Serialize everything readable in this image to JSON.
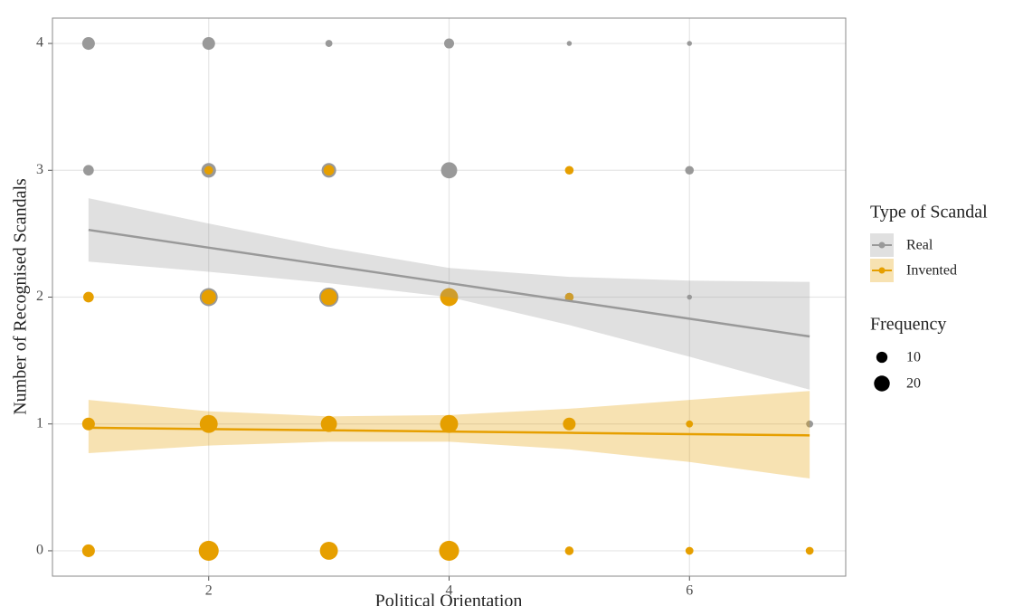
{
  "chart_data": {
    "type": "scatter",
    "x_label": "Political Orientation",
    "y_label": "Number of Recognised Scandals",
    "xlim": [
      0.7,
      7.3
    ],
    "ylim": [
      -0.2,
      4.2
    ],
    "xticks": [
      2,
      4,
      6
    ],
    "yticks": [
      0,
      1,
      2,
      3,
      4
    ],
    "grid": true,
    "legend_position": "right",
    "color_legend_title": "Type of Scandal",
    "size_legend_title": "Frequency",
    "size_legend": [
      10,
      20
    ],
    "series": [
      {
        "name": "Real",
        "color": "#999999",
        "x": [
          1,
          2,
          3,
          4,
          5,
          6,
          1,
          2,
          3,
          4,
          6,
          2,
          3,
          4,
          5,
          6,
          7
        ],
        "y": [
          4,
          4,
          4,
          4,
          4,
          4,
          3,
          3,
          3,
          3,
          3,
          2,
          2,
          2,
          2,
          2,
          1
        ],
        "size": [
          13,
          13,
          4,
          8,
          2,
          2,
          9,
          17,
          17,
          21,
          6,
          26,
          30,
          20,
          6,
          2,
          4
        ],
        "fit": {
          "x": [
            1,
            2,
            3,
            4,
            5,
            6,
            7
          ],
          "y": [
            2.53,
            2.39,
            2.25,
            2.11,
            1.97,
            1.83,
            1.69
          ],
          "lower": [
            2.28,
            2.2,
            2.11,
            2.0,
            1.78,
            1.53,
            1.27
          ],
          "upper": [
            2.78,
            2.58,
            2.39,
            2.23,
            2.16,
            2.13,
            2.12
          ]
        }
      },
      {
        "name": "Invented",
        "color": "#E69F00",
        "x": [
          2,
          3,
          5,
          1,
          2,
          3,
          4,
          5,
          1,
          2,
          3,
          4,
          5,
          6,
          1,
          2,
          3,
          4,
          5,
          6,
          7
        ],
        "y": [
          3,
          3,
          3,
          2,
          2,
          2,
          2,
          2,
          1,
          1,
          1,
          1,
          1,
          1,
          0,
          0,
          0,
          0,
          0,
          0,
          0
        ],
        "size": [
          6,
          9,
          6,
          9,
          17,
          21,
          26,
          6,
          13,
          26,
          21,
          26,
          13,
          4,
          13,
          32,
          26,
          32,
          6,
          5,
          5
        ],
        "fit": {
          "x": [
            1,
            2,
            3,
            4,
            5,
            6,
            7
          ],
          "y": [
            0.97,
            0.96,
            0.95,
            0.94,
            0.93,
            0.92,
            0.91
          ],
          "lower": [
            0.77,
            0.83,
            0.86,
            0.86,
            0.8,
            0.7,
            0.57
          ],
          "upper": [
            1.19,
            1.1,
            1.06,
            1.07,
            1.12,
            1.19,
            1.26
          ]
        }
      }
    ]
  }
}
